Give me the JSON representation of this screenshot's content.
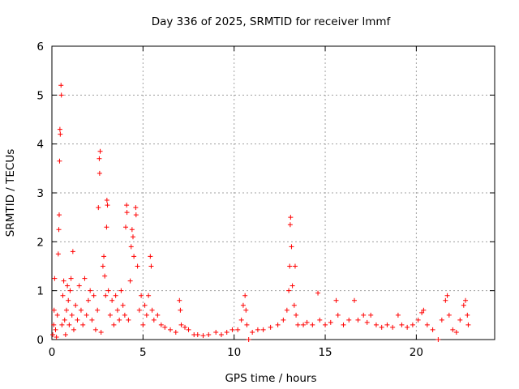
{
  "chart_data": {
    "type": "scatter",
    "title": "Day 336 of 2025, SRMTID for receiver lmmf",
    "xlabel": "GPS time / hours",
    "ylabel": "SRMTID / TECUs",
    "xlim": [
      0,
      24.3
    ],
    "ylim": [
      0,
      6
    ],
    "x_ticks": [
      "0",
      "5",
      "10",
      "15",
      "20"
    ],
    "x_tick_values": [
      0,
      5,
      10,
      15,
      20
    ],
    "y_ticks": [
      "0",
      "1",
      "2",
      "3",
      "4",
      "5",
      "6"
    ],
    "y_tick_values": [
      0,
      1,
      2,
      3,
      4,
      5,
      6
    ],
    "grid": true,
    "marker": "plus",
    "marker_color": "#ff0000",
    "series": [
      {
        "name": "SRMTID",
        "points": [
          [
            0.05,
            0.1
          ],
          [
            0.1,
            0.3
          ],
          [
            0.12,
            0.6
          ],
          [
            0.15,
            1.25
          ],
          [
            0.2,
            0.2
          ],
          [
            0.25,
            0.05
          ],
          [
            0.3,
            0.5
          ],
          [
            0.35,
            1.75
          ],
          [
            0.38,
            2.25
          ],
          [
            0.4,
            2.55
          ],
          [
            0.42,
            3.65
          ],
          [
            0.44,
            4.3
          ],
          [
            0.46,
            4.2
          ],
          [
            0.5,
            5.2
          ],
          [
            0.52,
            5.0
          ],
          [
            0.55,
            0.3
          ],
          [
            0.6,
            0.9
          ],
          [
            0.65,
            1.2
          ],
          [
            0.7,
            0.4
          ],
          [
            0.75,
            0.1
          ],
          [
            0.8,
            0.6
          ],
          [
            0.85,
            1.1
          ],
          [
            0.9,
            0.8
          ],
          [
            0.95,
            0.3
          ],
          [
            1.0,
            1.0
          ],
          [
            1.05,
            1.25
          ],
          [
            1.1,
            0.5
          ],
          [
            1.15,
            1.8
          ],
          [
            1.2,
            0.2
          ],
          [
            1.3,
            0.7
          ],
          [
            1.4,
            0.4
          ],
          [
            1.5,
            1.1
          ],
          [
            1.6,
            0.6
          ],
          [
            1.7,
            0.3
          ],
          [
            1.8,
            1.25
          ],
          [
            1.9,
            0.5
          ],
          [
            2.0,
            0.8
          ],
          [
            2.1,
            1.0
          ],
          [
            2.2,
            0.4
          ],
          [
            2.3,
            0.9
          ],
          [
            2.4,
            0.2
          ],
          [
            2.5,
            0.6
          ],
          [
            2.55,
            2.7
          ],
          [
            2.6,
            3.7
          ],
          [
            2.62,
            3.4
          ],
          [
            2.65,
            3.85
          ],
          [
            2.7,
            0.15
          ],
          [
            2.8,
            1.5
          ],
          [
            2.85,
            1.7
          ],
          [
            2.9,
            1.3
          ],
          [
            2.95,
            0.9
          ],
          [
            3.0,
            2.3
          ],
          [
            3.02,
            2.85
          ],
          [
            3.05,
            2.75
          ],
          [
            3.1,
            1.0
          ],
          [
            3.2,
            0.5
          ],
          [
            3.3,
            0.8
          ],
          [
            3.4,
            0.3
          ],
          [
            3.5,
            0.9
          ],
          [
            3.6,
            0.6
          ],
          [
            3.7,
            0.4
          ],
          [
            3.8,
            1.0
          ],
          [
            3.9,
            0.7
          ],
          [
            4.0,
            0.5
          ],
          [
            4.05,
            2.3
          ],
          [
            4.1,
            2.75
          ],
          [
            4.12,
            2.6
          ],
          [
            4.2,
            0.4
          ],
          [
            4.3,
            1.2
          ],
          [
            4.35,
            1.9
          ],
          [
            4.4,
            2.25
          ],
          [
            4.45,
            2.1
          ],
          [
            4.5,
            1.7
          ],
          [
            4.6,
            2.7
          ],
          [
            4.62,
            2.55
          ],
          [
            4.7,
            1.5
          ],
          [
            4.8,
            0.6
          ],
          [
            4.9,
            0.9
          ],
          [
            5.0,
            0.3
          ],
          [
            5.1,
            0.7
          ],
          [
            5.2,
            0.5
          ],
          [
            5.3,
            0.9
          ],
          [
            5.4,
            1.7
          ],
          [
            5.45,
            1.5
          ],
          [
            5.5,
            0.6
          ],
          [
            5.6,
            0.4
          ],
          [
            5.8,
            0.5
          ],
          [
            6.0,
            0.3
          ],
          [
            6.2,
            0.25
          ],
          [
            6.5,
            0.2
          ],
          [
            6.8,
            0.15
          ],
          [
            7.0,
            0.8
          ],
          [
            7.05,
            0.6
          ],
          [
            7.1,
            0.3
          ],
          [
            7.3,
            0.25
          ],
          [
            7.5,
            0.2
          ],
          [
            7.8,
            0.1
          ],
          [
            8.0,
            0.1
          ],
          [
            8.3,
            0.08
          ],
          [
            8.6,
            0.1
          ],
          [
            9.0,
            0.15
          ],
          [
            9.3,
            0.1
          ],
          [
            9.6,
            0.15
          ],
          [
            9.9,
            0.2
          ],
          [
            10.2,
            0.2
          ],
          [
            10.4,
            0.4
          ],
          [
            10.5,
            0.7
          ],
          [
            10.6,
            0.9
          ],
          [
            10.65,
            0.6
          ],
          [
            10.7,
            0.3
          ],
          [
            10.8,
            0.0
          ],
          [
            11.0,
            0.15
          ],
          [
            11.3,
            0.2
          ],
          [
            11.6,
            0.2
          ],
          [
            12.0,
            0.25
          ],
          [
            12.4,
            0.3
          ],
          [
            12.7,
            0.4
          ],
          [
            12.9,
            0.6
          ],
          [
            13.0,
            1.0
          ],
          [
            13.05,
            1.5
          ],
          [
            13.08,
            2.35
          ],
          [
            13.1,
            2.5
          ],
          [
            13.15,
            1.9
          ],
          [
            13.2,
            1.1
          ],
          [
            13.3,
            0.7
          ],
          [
            13.35,
            1.5
          ],
          [
            13.4,
            0.5
          ],
          [
            13.5,
            0.3
          ],
          [
            13.8,
            0.3
          ],
          [
            14.0,
            0.35
          ],
          [
            14.3,
            0.3
          ],
          [
            14.6,
            0.95
          ],
          [
            14.7,
            0.4
          ],
          [
            15.0,
            0.3
          ],
          [
            15.3,
            0.35
          ],
          [
            15.6,
            0.8
          ],
          [
            15.7,
            0.5
          ],
          [
            16.0,
            0.3
          ],
          [
            16.3,
            0.4
          ],
          [
            16.6,
            0.8
          ],
          [
            16.8,
            0.4
          ],
          [
            17.1,
            0.5
          ],
          [
            17.3,
            0.35
          ],
          [
            17.5,
            0.5
          ],
          [
            17.8,
            0.3
          ],
          [
            18.1,
            0.25
          ],
          [
            18.4,
            0.3
          ],
          [
            18.7,
            0.25
          ],
          [
            19.0,
            0.5
          ],
          [
            19.2,
            0.3
          ],
          [
            19.5,
            0.25
          ],
          [
            19.8,
            0.3
          ],
          [
            20.1,
            0.4
          ],
          [
            20.3,
            0.55
          ],
          [
            20.4,
            0.6
          ],
          [
            20.6,
            0.3
          ],
          [
            20.9,
            0.2
          ],
          [
            21.2,
            0.0
          ],
          [
            21.4,
            0.4
          ],
          [
            21.6,
            0.8
          ],
          [
            21.7,
            0.9
          ],
          [
            21.8,
            0.5
          ],
          [
            22.0,
            0.2
          ],
          [
            22.2,
            0.15
          ],
          [
            22.4,
            0.4
          ],
          [
            22.6,
            0.7
          ],
          [
            22.7,
            0.8
          ],
          [
            22.8,
            0.5
          ],
          [
            22.85,
            0.3
          ]
        ]
      }
    ]
  }
}
